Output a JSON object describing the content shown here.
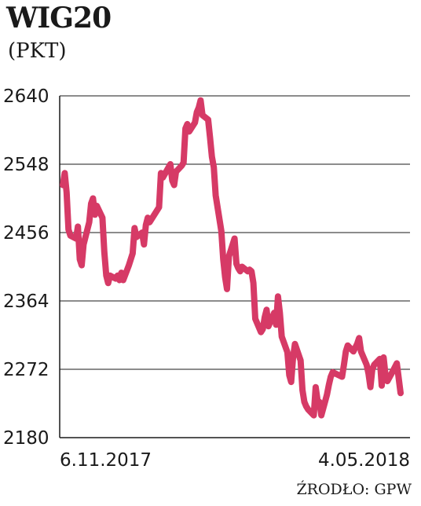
{
  "chart_data": {
    "type": "line",
    "title": "WIG20",
    "unit": "(PKT)",
    "source": "ŹRODŁO: GPW",
    "ylim": [
      2180,
      2640
    ],
    "yticks": [
      "2640",
      "2548",
      "2456",
      "2364",
      "2272",
      "2180"
    ],
    "grid": true,
    "x_start_label": "6.11.2017",
    "x_end_label": "4.05.2018",
    "line_color": "#d63a66",
    "series": [
      {
        "x": [
          "2017-11-06",
          "2017-11-07",
          "2017-11-08",
          "2017-11-09",
          "2017-11-10",
          "2017-11-13",
          "2017-11-14",
          "2017-11-15",
          "2017-11-16",
          "2017-11-17",
          "2017-11-20",
          "2017-11-21",
          "2017-11-22",
          "2017-11-23",
          "2017-11-24",
          "2017-11-27",
          "2017-11-28",
          "2017-11-29",
          "2017-11-30",
          "2017-12-01",
          "2017-12-04",
          "2017-12-05",
          "2017-12-06",
          "2017-12-07",
          "2017-12-08",
          "2017-12-11",
          "2017-12-12",
          "2017-12-13",
          "2017-12-14",
          "2017-12-15",
          "2017-12-18",
          "2017-12-19",
          "2017-12-20",
          "2017-12-21",
          "2017-12-22",
          "2017-12-27",
          "2017-12-28",
          "2017-12-29",
          "2018-01-02",
          "2018-01-03",
          "2018-01-04",
          "2018-01-05",
          "2018-01-08",
          "2018-01-09",
          "2018-01-10",
          "2018-01-11",
          "2018-01-12",
          "2018-01-15",
          "2018-01-16",
          "2018-01-17",
          "2018-01-18",
          "2018-01-19",
          "2018-01-22",
          "2018-01-23",
          "2018-01-24",
          "2018-01-25",
          "2018-01-26",
          "2018-01-29",
          "2018-01-30",
          "2018-01-31",
          "2018-02-01",
          "2018-02-02",
          "2018-02-05",
          "2018-02-06",
          "2018-02-07",
          "2018-02-08",
          "2018-02-09",
          "2018-02-12",
          "2018-02-13",
          "2018-02-14",
          "2018-02-15",
          "2018-02-16",
          "2018-02-19",
          "2018-02-20",
          "2018-02-21",
          "2018-02-22",
          "2018-02-23",
          "2018-02-26",
          "2018-02-27",
          "2018-02-28",
          "2018-03-01",
          "2018-03-02",
          "2018-03-05",
          "2018-03-06",
          "2018-03-07",
          "2018-03-08",
          "2018-03-09",
          "2018-03-12",
          "2018-03-13",
          "2018-03-14",
          "2018-03-15",
          "2018-03-16",
          "2018-03-19",
          "2018-03-20",
          "2018-03-21",
          "2018-03-22",
          "2018-03-23",
          "2018-03-26",
          "2018-03-27",
          "2018-03-28",
          "2018-03-29",
          "2018-04-03",
          "2018-04-04",
          "2018-04-05",
          "2018-04-06",
          "2018-04-09",
          "2018-04-10",
          "2018-04-11",
          "2018-04-12",
          "2018-04-13",
          "2018-04-16",
          "2018-04-17",
          "2018-04-18",
          "2018-04-19",
          "2018-04-20",
          "2018-04-23",
          "2018-04-24",
          "2018-04-25",
          "2018-04-26",
          "2018-04-27",
          "2018-04-30",
          "2018-05-02",
          "2018-05-04"
        ],
        "y": [
          2520,
          2536,
          2510,
          2460,
          2452,
          2448,
          2464,
          2420,
          2412,
          2440,
          2470,
          2495,
          2502,
          2480,
          2492,
          2476,
          2430,
          2398,
          2388,
          2398,
          2394,
          2398,
          2392,
          2402,
          2392,
          2412,
          2420,
          2428,
          2462,
          2450,
          2456,
          2440,
          2466,
          2476,
          2470,
          2490,
          2536,
          2530,
          2548,
          2526,
          2520,
          2538,
          2546,
          2550,
          2596,
          2602,
          2592,
          2604,
          2618,
          2624,
          2634,
          2614,
          2608,
          2584,
          2558,
          2544,
          2506,
          2458,
          2420,
          2396,
          2380,
          2424,
          2448,
          2414,
          2408,
          2404,
          2410,
          2404,
          2406,
          2404,
          2388,
          2340,
          2322,
          2326,
          2342,
          2352,
          2330,
          2348,
          2332,
          2370,
          2348,
          2316,
          2295,
          2264,
          2255,
          2288,
          2306,
          2284,
          2244,
          2228,
          2222,
          2218,
          2210,
          2248,
          2230,
          2228,
          2210,
          2238,
          2251,
          2262,
          2268,
          2262,
          2278,
          2296,
          2304,
          2296,
          2301,
          2306,
          2314,
          2296,
          2278,
          2266,
          2248,
          2272,
          2278,
          2286,
          2250,
          2288,
          2264,
          2256,
          2270,
          2280,
          2240
        ]
      }
    ]
  }
}
